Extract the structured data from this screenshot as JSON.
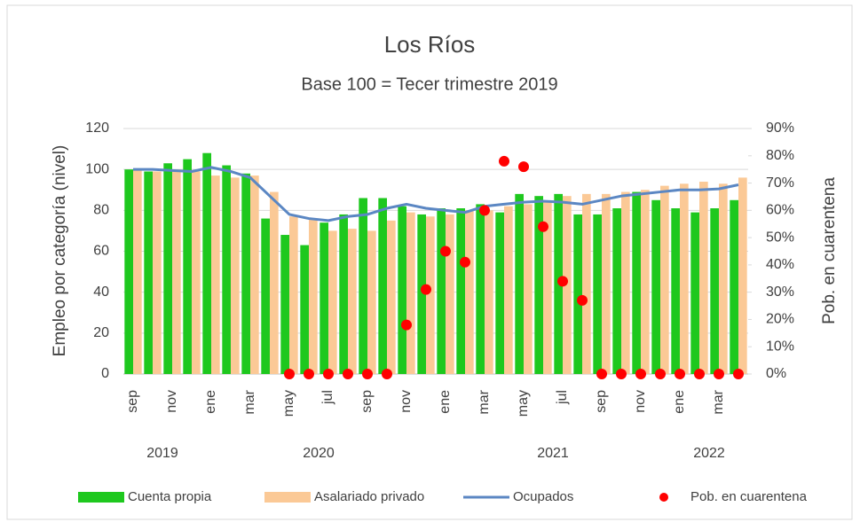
{
  "chart_data": {
    "type": "combo",
    "title": "Los Ríos",
    "subtitle": "Base 100 = Tecer trimestre 2019",
    "y_label": "Empleo por categoría (nivel)",
    "y2_label": "Pob. en cuarentena",
    "categories": [
      "sep",
      null,
      "nov",
      null,
      "ene",
      null,
      "mar",
      null,
      "may",
      null,
      "jul",
      null,
      "sep",
      null,
      "nov",
      null,
      "ene",
      null,
      "mar",
      null,
      "may",
      null,
      "jul",
      null,
      "sep",
      null,
      "nov",
      null,
      "ene",
      null,
      "mar",
      null
    ],
    "x_groups": [
      {
        "label": "2019",
        "count": 4
      },
      {
        "label": "2020",
        "count": 12
      },
      {
        "label": "2021",
        "count": 12
      },
      {
        "label": "2022",
        "count": 4
      }
    ],
    "series": [
      {
        "name": "Cuenta propia",
        "type": "bar",
        "color": "#1ec81e",
        "values": [
          100,
          99,
          103,
          105,
          108,
          102,
          98,
          76,
          68,
          63,
          74,
          78,
          86,
          86,
          82,
          78,
          81,
          81,
          83,
          79,
          88,
          87,
          88,
          78,
          78,
          81,
          89,
          85,
          81,
          79,
          81,
          85
        ]
      },
      {
        "name": "Asalariado privado",
        "type": "bar",
        "color": "#fbc996",
        "values": [
          100,
          99,
          100,
          99,
          97,
          96,
          97,
          89,
          77,
          76,
          70,
          71,
          70,
          75,
          79,
          77,
          78,
          80,
          80,
          82,
          83,
          84,
          87,
          88,
          88,
          89,
          90,
          92,
          93,
          94,
          93,
          96
        ]
      },
      {
        "name": "Ocupados",
        "type": "line",
        "color": "#5b87c3",
        "values": [
          100,
          100,
          99.5,
          99,
          101,
          99,
          96,
          87,
          78,
          76,
          75,
          77,
          78,
          81,
          83,
          81,
          80,
          79,
          82,
          83,
          84,
          84.5,
          84,
          83,
          85,
          87,
          88,
          89,
          90,
          90,
          90.5,
          92.5
        ]
      },
      {
        "name": "Pob. en cuarentena",
        "type": "scatter",
        "axis": "y2",
        "color": "#ff0000",
        "values": [
          null,
          null,
          null,
          null,
          null,
          null,
          null,
          null,
          0,
          0,
          0,
          0,
          0,
          0,
          18,
          31,
          45,
          41,
          60,
          78,
          76,
          54,
          34,
          27,
          0,
          0,
          0,
          0,
          0,
          0,
          0,
          0
        ]
      }
    ],
    "ylim": [
      0,
      120
    ],
    "yticks": [
      0,
      20,
      40,
      60,
      80,
      100,
      120
    ],
    "y2lim": [
      0,
      90
    ],
    "y2ticks": [
      {
        "value": 0,
        "label": "0%"
      },
      {
        "value": 10,
        "label": "10%"
      },
      {
        "value": 20,
        "label": "20%"
      },
      {
        "value": 30,
        "label": "30%"
      },
      {
        "value": 40,
        "label": "40%"
      },
      {
        "value": 50,
        "label": "50%"
      },
      {
        "value": 60,
        "label": "60%"
      },
      {
        "value": 70,
        "label": "70%"
      },
      {
        "value": 80,
        "label": "80%"
      },
      {
        "value": 90,
        "label": "90%"
      }
    ],
    "grid": true,
    "legend": "bottom"
  }
}
